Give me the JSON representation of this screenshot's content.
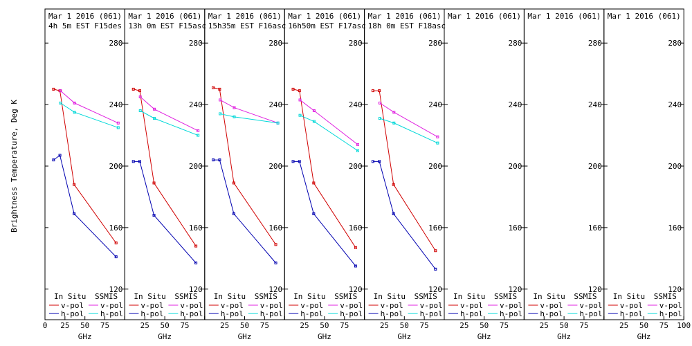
{
  "figure": {
    "ylabel": "Brightness Temperature, Deg K",
    "xlabel": "GHz"
  },
  "chart_data": {
    "type": "line",
    "ylim": [
      110,
      290
    ],
    "yticks": [
      120,
      160,
      200,
      240,
      280
    ],
    "xlim": [
      0,
      100
    ],
    "xticks": [
      0,
      25,
      50,
      75,
      100
    ],
    "legend": {
      "in_situ_label": "In Situ",
      "ssmis_label": "SSMIS",
      "vpol_label": "v-pol",
      "hpol_label": "h-pol"
    },
    "colors": {
      "insitu_v": "#d00000",
      "insitu_h": "#0000b0",
      "ssmis_v": "#e020e0",
      "ssmis_h": "#00d8d8"
    },
    "panels": [
      {
        "title_line1": "Mar 1 2016 (061)",
        "title_line2": "4h 5m EST F15des",
        "series": [
          {
            "x": [
              10.7,
              18.7,
              36.5,
              89
            ],
            "y": [
              250,
              249,
              188,
              150
            ]
          },
          {
            "x": [
              10.7,
              18.7,
              36.5,
              89
            ],
            "y": [
              204,
              207,
              169,
              141
            ]
          },
          {
            "x": [
              19.35,
              37,
              91.65
            ],
            "y": [
              249,
              241,
              228
            ]
          },
          {
            "x": [
              19.35,
              37,
              91.65
            ],
            "y": [
              241,
              235,
              225
            ]
          }
        ]
      },
      {
        "title_line1": "Mar 1 2016 (061)",
        "title_line2": "13h 0m EST F15asc",
        "series": [
          {
            "x": [
              10.7,
              18.7,
              36.5,
              89
            ],
            "y": [
              250,
              249,
              189,
              148
            ]
          },
          {
            "x": [
              10.7,
              18.7,
              36.5,
              89
            ],
            "y": [
              203,
              203,
              168,
              137
            ]
          },
          {
            "x": [
              19.35,
              37,
              91.65
            ],
            "y": [
              245,
              237,
              223
            ]
          },
          {
            "x": [
              19.35,
              37,
              91.65
            ],
            "y": [
              236,
              231,
              220
            ]
          }
        ]
      },
      {
        "title_line1": "Mar 1 2016 (061)",
        "title_line2": "15h35m EST F16asc",
        "series": [
          {
            "x": [
              10.7,
              18.7,
              36.5,
              89
            ],
            "y": [
              251,
              250,
              189,
              149
            ]
          },
          {
            "x": [
              10.7,
              18.7,
              36.5,
              89
            ],
            "y": [
              204,
              204,
              169,
              137
            ]
          },
          {
            "x": [
              19.35,
              37,
              91.65
            ],
            "y": [
              243,
              238,
              228
            ]
          },
          {
            "x": [
              19.35,
              37,
              91.65
            ],
            "y": [
              234,
              232,
              228
            ]
          }
        ]
      },
      {
        "title_line1": "Mar 1 2016 (061)",
        "title_line2": "16h50m EST F17asc",
        "series": [
          {
            "x": [
              10.7,
              18.7,
              36.5,
              89
            ],
            "y": [
              250,
              249,
              189,
              147
            ]
          },
          {
            "x": [
              10.7,
              18.7,
              36.5,
              89
            ],
            "y": [
              203,
              203,
              169,
              135
            ]
          },
          {
            "x": [
              19.35,
              37,
              91.65
            ],
            "y": [
              243,
              236,
              214
            ]
          },
          {
            "x": [
              19.35,
              37,
              91.65
            ],
            "y": [
              233,
              229,
              210
            ]
          }
        ]
      },
      {
        "title_line1": "Mar 1 2016 (061)",
        "title_line2": "18h 0m EST F18asc",
        "series": [
          {
            "x": [
              10.7,
              18.7,
              36.5,
              89
            ],
            "y": [
              249,
              249,
              188,
              145
            ]
          },
          {
            "x": [
              10.7,
              18.7,
              36.5,
              89
            ],
            "y": [
              203,
              203,
              169,
              133
            ]
          },
          {
            "x": [
              19.35,
              37,
              91.65
            ],
            "y": [
              241,
              235,
              219
            ]
          },
          {
            "x": [
              19.35,
              37,
              91.65
            ],
            "y": [
              231,
              228,
              215
            ]
          }
        ]
      },
      {
        "title_line1": "Mar 1 2016 (061)",
        "title_line2": "",
        "series": []
      },
      {
        "title_line1": "Mar 1 2016 (061)",
        "title_line2": "",
        "series": []
      },
      {
        "title_line1": "Mar 1 2016 (061)",
        "title_line2": "",
        "series": []
      }
    ]
  }
}
